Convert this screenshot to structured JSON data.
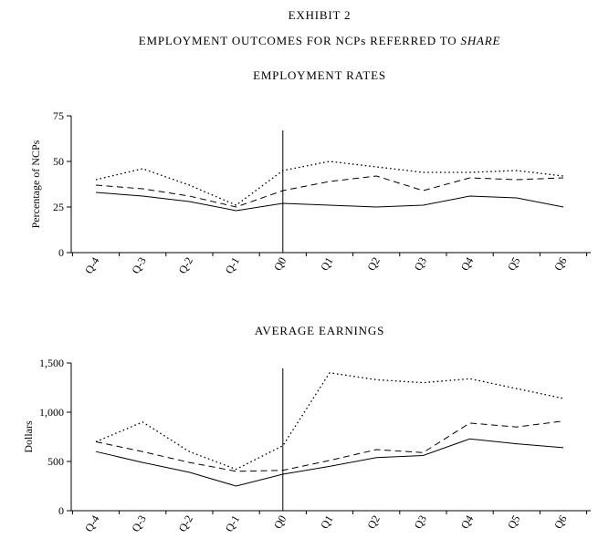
{
  "page": {
    "title": "EXHIBIT 2",
    "subtitle_prefix": "EMPLOYMENT OUTCOMES FOR NCPs REFERRED TO ",
    "subtitle_italic": "SHARE"
  },
  "chart_data": [
    {
      "type": "line",
      "title": "EMPLOYMENT RATES",
      "xlabel": "",
      "ylabel": "Percentage of NCPs",
      "categories": [
        "Q-4",
        "Q-3",
        "Q-2",
        "Q-1",
        "Q0",
        "Q1",
        "Q2",
        "Q3",
        "Q4",
        "Q5",
        "Q6"
      ],
      "ylim": [
        0,
        75
      ],
      "yticks": [
        0,
        25,
        50,
        75
      ],
      "ytick_labels": [
        "0",
        "25",
        "50",
        "75"
      ],
      "grid": false,
      "legend": "none",
      "line_color": "#000000",
      "reference_line": {
        "x": "Q0",
        "y_top": 67
      },
      "series": [
        {
          "name": "solid-line",
          "style": "solid",
          "values": [
            33,
            31,
            28,
            23,
            27,
            26,
            25,
            26,
            31,
            30,
            25
          ]
        },
        {
          "name": "dashed-line",
          "style": "dashed",
          "values": [
            37,
            35,
            31,
            25,
            34,
            39,
            42,
            34,
            41,
            40,
            41
          ]
        },
        {
          "name": "dotted-line",
          "style": "dotted",
          "values": [
            40,
            46,
            37,
            26,
            45,
            50,
            47,
            44,
            44,
            45,
            42
          ]
        }
      ]
    },
    {
      "type": "line",
      "title": "AVERAGE EARNINGS",
      "xlabel": "",
      "ylabel": "Dollars",
      "categories": [
        "Q-4",
        "Q-3",
        "Q-2",
        "Q-1",
        "Q0",
        "Q1",
        "Q2",
        "Q3",
        "Q4",
        "Q5",
        "Q6"
      ],
      "ylim": [
        0,
        1500
      ],
      "yticks": [
        0,
        500,
        1000,
        1500
      ],
      "ytick_labels": [
        "0",
        "500",
        "1,000",
        "1,500"
      ],
      "grid": false,
      "legend": "none",
      "line_color": "#000000",
      "reference_line": {
        "x": "Q0",
        "y_top": 1445
      },
      "series": [
        {
          "name": "solid-line",
          "style": "solid",
          "values": [
            600,
            490,
            390,
            250,
            370,
            450,
            540,
            560,
            730,
            680,
            640
          ]
        },
        {
          "name": "dashed-line",
          "style": "dashed",
          "values": [
            700,
            600,
            490,
            400,
            410,
            510,
            620,
            590,
            890,
            850,
            910
          ]
        },
        {
          "name": "dotted-line",
          "style": "dotted",
          "values": [
            700,
            900,
            600,
            420,
            660,
            1400,
            1330,
            1300,
            1340,
            1240,
            1140
          ]
        }
      ]
    }
  ]
}
